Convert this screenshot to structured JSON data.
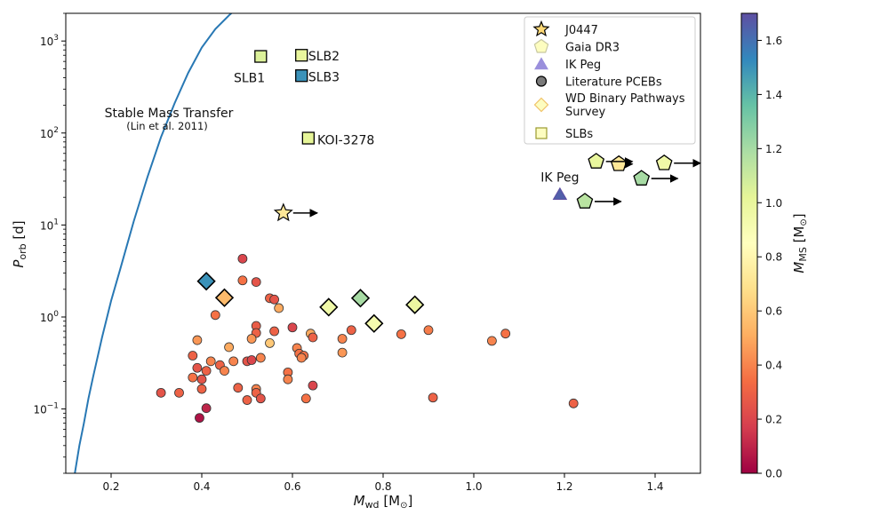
{
  "chart_data": {
    "type": "scatter",
    "xlabel_main": "M",
    "xlabel_sub": "wd",
    "xlabel_unit_pre": "[M",
    "xlabel_unit_post": "]",
    "ylabel_main": "P",
    "ylabel_sub": "orb",
    "ylabel_unit": "[d]",
    "xlim": [
      0.1,
      1.5
    ],
    "ylim": [
      0.02,
      2000
    ],
    "yscale": "log",
    "x_ticks": [
      {
        "v": 0.2,
        "label": "0.2"
      },
      {
        "v": 0.4,
        "label": "0.4"
      },
      {
        "v": 0.6,
        "label": "0.6"
      },
      {
        "v": 0.8,
        "label": "0.8"
      },
      {
        "v": 1.0,
        "label": "1.0"
      },
      {
        "v": 1.2,
        "label": "1.2"
      },
      {
        "v": 1.4,
        "label": "1.4"
      }
    ],
    "y_ticks": [
      {
        "v": 0.1,
        "base": "10",
        "exp": "−1"
      },
      {
        "v": 1,
        "base": "10",
        "exp": "0"
      },
      {
        "v": 10,
        "base": "10",
        "exp": "1"
      },
      {
        "v": 100,
        "base": "10",
        "exp": "2"
      },
      {
        "v": 1000,
        "base": "10",
        "exp": "3"
      }
    ],
    "colorbar": {
      "label_main": "M",
      "label_sub": "MS",
      "label_unit_pre": "[M",
      "label_unit_post": "]",
      "min": 0.0,
      "max": 1.7,
      "ticks": [
        "0.0",
        "0.2",
        "0.4",
        "0.6",
        "0.8",
        "1.0",
        "1.2",
        "1.4",
        "1.6"
      ],
      "tick_values": [
        0.0,
        0.2,
        0.4,
        0.6,
        0.8,
        1.0,
        1.2,
        1.4,
        1.6
      ]
    },
    "stable_mt": {
      "label": "Stable Mass Transfer",
      "citation": "(Lin et al. 2011)",
      "curve": [
        [
          0.12,
          0.02
        ],
        [
          0.13,
          0.04
        ],
        [
          0.14,
          0.07
        ],
        [
          0.15,
          0.13
        ],
        [
          0.16,
          0.22
        ],
        [
          0.18,
          0.6
        ],
        [
          0.2,
          1.5
        ],
        [
          0.22,
          3.3
        ],
        [
          0.25,
          11
        ],
        [
          0.28,
          33
        ],
        [
          0.31,
          90
        ],
        [
          0.34,
          210
        ],
        [
          0.37,
          450
        ],
        [
          0.4,
          850
        ],
        [
          0.43,
          1350
        ],
        [
          0.46,
          1900
        ],
        [
          0.47,
          2100
        ]
      ]
    },
    "legend": [
      {
        "marker": "star",
        "label": "J0447",
        "face": "#fed976",
        "edge": "#000000"
      },
      {
        "marker": "pentagon",
        "label": "Gaia DR3",
        "face": "#fdfdc0",
        "edge": "#c8c8a0"
      },
      {
        "marker": "triangle",
        "label": "IK Peg",
        "face": "#9a8fdc",
        "edge": "#9a8fdc"
      },
      {
        "marker": "circle",
        "label": "Literature PCEBs",
        "face": "#7a7a7a",
        "edge": "#000000"
      },
      {
        "marker": "diamond",
        "label": "WD Binary Pathways Survey",
        "face": "#fdfdc0",
        "edge": "#f0c36a"
      },
      {
        "marker": "square",
        "label": "SLBs",
        "face": "#fdfdc0",
        "edge": "#9a9a30"
      }
    ],
    "j0447": {
      "name": "J0447",
      "x": 0.58,
      "y": 13.5,
      "mms": 0.72,
      "lower_limit": true
    },
    "ik_peg": {
      "name": "IK Peg",
      "x": 1.19,
      "y": 21.7,
      "mms": 1.65
    },
    "slbs": [
      {
        "name": "SLB1",
        "x": 0.53,
        "y": 680,
        "mms": 1.05
      },
      {
        "name": "SLB2",
        "x": 0.62,
        "y": 700,
        "mms": 1.0
      },
      {
        "name": "SLB3",
        "x": 0.62,
        "y": 420,
        "mms": 1.5
      },
      {
        "name": "KOI-3278",
        "x": 0.635,
        "y": 88,
        "mms": 1.02
      }
    ],
    "gaia_dr3": [
      {
        "x": 1.27,
        "y": 49,
        "mms": 1.0
      },
      {
        "x": 1.32,
        "y": 46,
        "mms": 0.72
      },
      {
        "x": 1.42,
        "y": 47,
        "mms": 0.95
      },
      {
        "x": 1.37,
        "y": 32,
        "mms": 1.2
      },
      {
        "x": 1.245,
        "y": 18,
        "mms": 1.15
      }
    ],
    "wd_pathways": [
      {
        "x": 0.41,
        "y": 2.45,
        "mms": 1.5
      },
      {
        "x": 0.45,
        "y": 1.62,
        "mms": 0.55
      },
      {
        "x": 0.68,
        "y": 1.28,
        "mms": 0.95
      },
      {
        "x": 0.75,
        "y": 1.6,
        "mms": 1.2
      },
      {
        "x": 0.78,
        "y": 0.85,
        "mms": 0.92
      },
      {
        "x": 0.87,
        "y": 1.36,
        "mms": 0.98
      }
    ],
    "pcebs": [
      {
        "x": 0.49,
        "y": 4.3,
        "mms": 0.2
      },
      {
        "x": 0.52,
        "y": 2.4,
        "mms": 0.25
      },
      {
        "x": 0.49,
        "y": 2.5,
        "mms": 0.35
      },
      {
        "x": 0.55,
        "y": 1.6,
        "mms": 0.3
      },
      {
        "x": 0.56,
        "y": 1.55,
        "mms": 0.25
      },
      {
        "x": 0.57,
        "y": 1.25,
        "mms": 0.5
      },
      {
        "x": 0.43,
        "y": 1.05,
        "mms": 0.35
      },
      {
        "x": 0.52,
        "y": 0.8,
        "mms": 0.28
      },
      {
        "x": 0.6,
        "y": 0.77,
        "mms": 0.2
      },
      {
        "x": 0.52,
        "y": 0.67,
        "mms": 0.3
      },
      {
        "x": 0.56,
        "y": 0.7,
        "mms": 0.3
      },
      {
        "x": 0.51,
        "y": 0.58,
        "mms": 0.45
      },
      {
        "x": 0.64,
        "y": 0.66,
        "mms": 0.5
      },
      {
        "x": 0.645,
        "y": 0.6,
        "mms": 0.3
      },
      {
        "x": 0.73,
        "y": 0.72,
        "mms": 0.3
      },
      {
        "x": 0.71,
        "y": 0.58,
        "mms": 0.4
      },
      {
        "x": 0.84,
        "y": 0.65,
        "mms": 0.35
      },
      {
        "x": 0.9,
        "y": 0.72,
        "mms": 0.38
      },
      {
        "x": 0.39,
        "y": 0.56,
        "mms": 0.45
      },
      {
        "x": 0.46,
        "y": 0.47,
        "mms": 0.5
      },
      {
        "x": 0.55,
        "y": 0.52,
        "mms": 0.6
      },
      {
        "x": 0.61,
        "y": 0.46,
        "mms": 0.4
      },
      {
        "x": 0.615,
        "y": 0.4,
        "mms": 0.35
      },
      {
        "x": 0.625,
        "y": 0.38,
        "mms": 0.35
      },
      {
        "x": 0.62,
        "y": 0.36,
        "mms": 0.4
      },
      {
        "x": 0.71,
        "y": 0.41,
        "mms": 0.45
      },
      {
        "x": 1.04,
        "y": 0.55,
        "mms": 0.4
      },
      {
        "x": 1.07,
        "y": 0.66,
        "mms": 0.35
      },
      {
        "x": 0.38,
        "y": 0.38,
        "mms": 0.3
      },
      {
        "x": 0.42,
        "y": 0.33,
        "mms": 0.4
      },
      {
        "x": 0.44,
        "y": 0.3,
        "mms": 0.3
      },
      {
        "x": 0.39,
        "y": 0.28,
        "mms": 0.25
      },
      {
        "x": 0.41,
        "y": 0.26,
        "mms": 0.3
      },
      {
        "x": 0.45,
        "y": 0.26,
        "mms": 0.4
      },
      {
        "x": 0.47,
        "y": 0.33,
        "mms": 0.4
      },
      {
        "x": 0.5,
        "y": 0.33,
        "mms": 0.25
      },
      {
        "x": 0.51,
        "y": 0.34,
        "mms": 0.2
      },
      {
        "x": 0.53,
        "y": 0.36,
        "mms": 0.4
      },
      {
        "x": 0.59,
        "y": 0.25,
        "mms": 0.35
      },
      {
        "x": 0.59,
        "y": 0.21,
        "mms": 0.4
      },
      {
        "x": 0.38,
        "y": 0.22,
        "mms": 0.35
      },
      {
        "x": 0.4,
        "y": 0.21,
        "mms": 0.25
      },
      {
        "x": 0.4,
        "y": 0.165,
        "mms": 0.3
      },
      {
        "x": 0.31,
        "y": 0.15,
        "mms": 0.25
      },
      {
        "x": 0.35,
        "y": 0.15,
        "mms": 0.3
      },
      {
        "x": 0.48,
        "y": 0.17,
        "mms": 0.3
      },
      {
        "x": 0.52,
        "y": 0.165,
        "mms": 0.4
      },
      {
        "x": 0.52,
        "y": 0.15,
        "mms": 0.3
      },
      {
        "x": 0.5,
        "y": 0.125,
        "mms": 0.3
      },
      {
        "x": 0.53,
        "y": 0.13,
        "mms": 0.25
      },
      {
        "x": 0.63,
        "y": 0.13,
        "mms": 0.35
      },
      {
        "x": 0.645,
        "y": 0.18,
        "mms": 0.2
      },
      {
        "x": 0.91,
        "y": 0.133,
        "mms": 0.3
      },
      {
        "x": 1.22,
        "y": 0.115,
        "mms": 0.3
      },
      {
        "x": 0.41,
        "y": 0.102,
        "mms": 0.1
      },
      {
        "x": 0.395,
        "y": 0.08,
        "mms": 0.05
      }
    ],
    "annotations": [
      {
        "text": "SLB1",
        "x": 0.505,
        "y": 400,
        "anchor": "middle"
      },
      {
        "text": "SLB2",
        "x": 0.635,
        "y": 690,
        "anchor": "start"
      },
      {
        "text": "SLB3",
        "x": 0.635,
        "y": 410,
        "anchor": "start"
      },
      {
        "text": "KOI-3278",
        "x": 0.655,
        "y": 84,
        "anchor": "start"
      },
      {
        "text": "IK Peg",
        "x": 1.19,
        "y": 33,
        "anchor": "middle"
      }
    ],
    "limit_arrows": [
      {
        "x": 0.58,
        "y": 13.5,
        "x_end": 0.655
      },
      {
        "x": 1.27,
        "y": 49,
        "x_end": 1.35
      },
      {
        "x": 1.32,
        "y": 46,
        "x_end": 1.35
      },
      {
        "x": 1.42,
        "y": 47,
        "x_end": 1.5
      },
      {
        "x": 1.37,
        "y": 32,
        "x_end": 1.45
      },
      {
        "x": 1.245,
        "y": 18,
        "x_end": 1.325
      }
    ]
  }
}
